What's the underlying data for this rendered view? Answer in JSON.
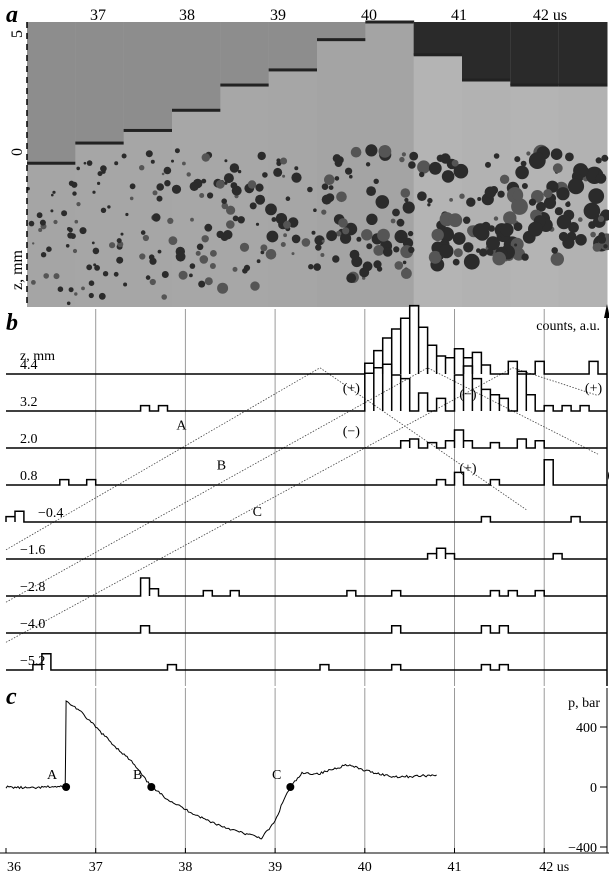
{
  "panel_a": {
    "letter": "a",
    "time_labels": [
      "37",
      "38",
      "39",
      "40",
      "41",
      "42 us"
    ],
    "z_ticks": [
      "5",
      "0"
    ],
    "z_label": "z, mm",
    "frame_front_z": [
      -0.3,
      0.5,
      1.0,
      1.8,
      2.8,
      3.4,
      4.6,
      5.3,
      4.0,
      3.0,
      2.8,
      2.8
    ],
    "frame_darkness": [
      0.35,
      0.34,
      0.34,
      0.33,
      0.33,
      0.34,
      0.36,
      0.36,
      0.2,
      0.22,
      0.2,
      0.22
    ]
  },
  "panel_b": {
    "letter": "b",
    "y_label": "counts, a.u.",
    "z_label": "z, mm",
    "traces": [
      {
        "z": "4.4",
        "events": [
          [
            40.0,
            40.1,
            12
          ],
          [
            40.1,
            40.2,
            26
          ],
          [
            40.2,
            40.3,
            40
          ],
          [
            40.3,
            40.4,
            50
          ],
          [
            40.4,
            40.5,
            62
          ],
          [
            40.5,
            40.6,
            76
          ],
          [
            40.6,
            40.7,
            52
          ],
          [
            40.7,
            40.8,
            32
          ],
          [
            40.8,
            40.9,
            20
          ],
          [
            40.9,
            41.0,
            18
          ],
          [
            41.0,
            41.1,
            28
          ],
          [
            41.1,
            41.2,
            18
          ],
          [
            41.2,
            41.3,
            24
          ],
          [
            41.3,
            41.4,
            10
          ],
          [
            41.6,
            41.7,
            14
          ],
          [
            41.9,
            42.0,
            14
          ],
          [
            42.5,
            42.6,
            14
          ]
        ]
      },
      {
        "z": "3.2",
        "events": [
          [
            37.5,
            37.6,
            6
          ],
          [
            37.7,
            37.8,
            6
          ],
          [
            40.0,
            40.1,
            42
          ],
          [
            40.1,
            40.2,
            48
          ],
          [
            40.2,
            40.3,
            52
          ],
          [
            40.3,
            40.4,
            40
          ],
          [
            40.4,
            40.5,
            36
          ],
          [
            40.6,
            40.7,
            20
          ],
          [
            40.8,
            40.9,
            14
          ],
          [
            41.0,
            41.1,
            40
          ],
          [
            41.1,
            41.2,
            50
          ],
          [
            41.2,
            41.3,
            36
          ],
          [
            41.3,
            41.4,
            24
          ],
          [
            41.4,
            41.5,
            18
          ],
          [
            41.5,
            41.6,
            14
          ],
          [
            41.7,
            41.8,
            44
          ],
          [
            41.8,
            41.9,
            18
          ],
          [
            42.0,
            42.1,
            6
          ],
          [
            42.2,
            42.3,
            6
          ],
          [
            42.4,
            42.5,
            6
          ]
        ]
      },
      {
        "z": "2.0",
        "events": [
          [
            40.4,
            40.5,
            8
          ],
          [
            40.5,
            40.6,
            10
          ],
          [
            40.7,
            40.8,
            6
          ],
          [
            40.9,
            41.0,
            8
          ],
          [
            41.0,
            41.1,
            20
          ],
          [
            41.1,
            41.2,
            8
          ],
          [
            41.4,
            41.5,
            6
          ],
          [
            41.7,
            41.8,
            10
          ],
          [
            41.9,
            42.0,
            8
          ]
        ]
      },
      {
        "z": "0.8",
        "events": [
          [
            36.6,
            36.7,
            6
          ],
          [
            36.9,
            37.0,
            6
          ],
          [
            40.8,
            40.9,
            6
          ],
          [
            41.0,
            41.1,
            14
          ],
          [
            41.4,
            41.5,
            6
          ],
          [
            42.0,
            42.1,
            28
          ]
        ]
      },
      {
        "z": "−0.4",
        "events": [
          [
            36.0,
            36.1,
            6
          ],
          [
            36.1,
            36.2,
            12
          ],
          [
            41.3,
            41.4,
            6
          ],
          [
            42.3,
            42.4,
            6
          ]
        ]
      },
      {
        "z": "−1.6",
        "events": [
          [
            40.7,
            40.8,
            6
          ],
          [
            40.8,
            40.9,
            12
          ],
          [
            40.9,
            41.0,
            6
          ],
          [
            42.1,
            42.2,
            6
          ]
        ]
      },
      {
        "z": "−2.8",
        "events": [
          [
            37.5,
            37.6,
            20
          ],
          [
            37.6,
            37.7,
            8
          ],
          [
            38.2,
            38.3,
            6
          ],
          [
            38.5,
            38.6,
            6
          ],
          [
            39.8,
            39.9,
            6
          ],
          [
            40.3,
            40.4,
            6
          ],
          [
            41.4,
            41.5,
            6
          ],
          [
            41.6,
            41.7,
            6
          ],
          [
            41.9,
            42.0,
            6
          ]
        ]
      },
      {
        "z": "−4.0",
        "events": [
          [
            37.5,
            37.6,
            8
          ],
          [
            40.3,
            40.4,
            8
          ],
          [
            41.3,
            41.4,
            8
          ],
          [
            41.5,
            41.6,
            8
          ]
        ]
      },
      {
        "z": "−5.2",
        "events": [
          [
            36.3,
            36.4,
            6
          ],
          [
            36.4,
            36.5,
            18
          ],
          [
            37.8,
            37.9,
            6
          ],
          [
            39.5,
            39.6,
            6
          ],
          [
            40.3,
            40.4,
            6
          ],
          [
            41.3,
            41.4,
            6
          ],
          [
            41.5,
            41.6,
            6
          ]
        ]
      }
    ],
    "annotations": [
      {
        "text": "(+)",
        "t": 39.85,
        "z": 3.8
      },
      {
        "text": "(−)",
        "t": 41.15,
        "z": 3.6
      },
      {
        "text": "(+)",
        "t": 42.55,
        "z": 3.8
      },
      {
        "text": "(−)",
        "t": 39.85,
        "z": 2.4
      },
      {
        "text": "(+)",
        "t": 41.15,
        "z": 1.2
      },
      {
        "text": "(−)",
        "t": 42.8,
        "z": 1.0
      }
    ],
    "dotted_lines": [
      {
        "label": "A",
        "points": [
          [
            36.0,
            -1.3
          ],
          [
            39.5,
            4.6
          ],
          [
            41.8,
            0.0
          ]
        ],
        "label_at": [
          37.9,
          2.6
        ]
      },
      {
        "label": "B",
        "points": [
          [
            36.0,
            -3.0
          ],
          [
            40.7,
            4.6
          ],
          [
            42.6,
            1.8
          ]
        ],
        "label_at": [
          38.35,
          1.3
        ]
      },
      {
        "label": "C",
        "points": [
          [
            36.0,
            -4.3
          ],
          [
            41.65,
            4.6
          ],
          [
            42.6,
            3.7
          ]
        ],
        "label_at": [
          38.75,
          -0.2
        ]
      }
    ]
  },
  "panel_c": {
    "letter": "c",
    "y_label": "p, bar",
    "y_ticks": [
      400,
      0,
      -400
    ],
    "y_range": [
      -440,
      660
    ],
    "points": [
      {
        "label": "A",
        "t": 36.67,
        "p": 0
      },
      {
        "label": "B",
        "t": 37.62,
        "p": 0
      },
      {
        "label": "C",
        "t": 39.17,
        "p": 0
      }
    ],
    "pressure_curve": [
      [
        36.0,
        0
      ],
      [
        36.3,
        -8
      ],
      [
        36.5,
        2
      ],
      [
        36.66,
        0
      ],
      [
        36.67,
        570
      ],
      [
        36.8,
        520
      ],
      [
        37.0,
        400
      ],
      [
        37.2,
        280
      ],
      [
        37.4,
        170
      ],
      [
        37.62,
        0
      ],
      [
        37.8,
        -80
      ],
      [
        38.0,
        -150
      ],
      [
        38.2,
        -210
      ],
      [
        38.4,
        -260
      ],
      [
        38.6,
        -300
      ],
      [
        38.85,
        -340
      ],
      [
        39.0,
        -230
      ],
      [
        39.1,
        -80
      ],
      [
        39.17,
        0
      ],
      [
        39.3,
        90
      ],
      [
        39.5,
        90
      ],
      [
        39.8,
        150
      ],
      [
        40.0,
        110
      ],
      [
        40.3,
        70
      ],
      [
        40.5,
        70
      ],
      [
        40.8,
        80
      ]
    ]
  },
  "time_axis": {
    "ticks": [
      "36",
      "37",
      "38",
      "39",
      "40",
      "41",
      "42 us"
    ],
    "range": [
      36,
      42.7
    ]
  }
}
